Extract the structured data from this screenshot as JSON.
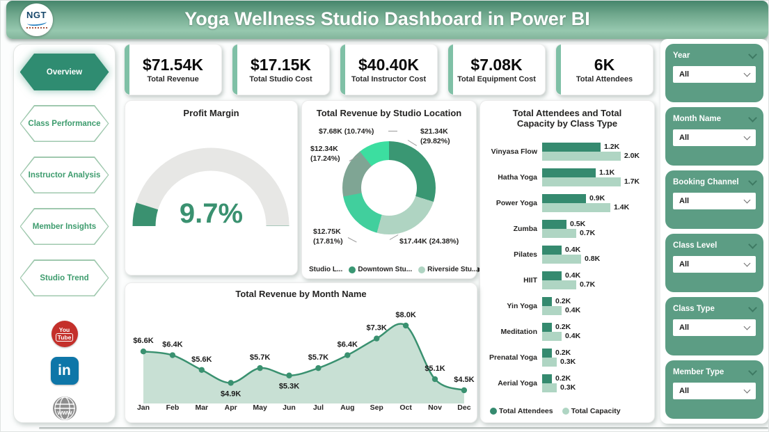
{
  "header": {
    "logo_text": "NGT",
    "title": "Yoga Wellness Studio Dashboard in Power BI"
  },
  "sidebar": {
    "items": [
      {
        "label": "Overview",
        "active": true
      },
      {
        "label": "Class Performance",
        "active": false
      },
      {
        "label": "Instructor Analysis",
        "active": false
      },
      {
        "label": "Member Insights",
        "active": false
      },
      {
        "label": "Studio Trend",
        "active": false
      }
    ],
    "social": {
      "youtube_lines": [
        "You",
        "Tube"
      ],
      "linkedin_text": "in",
      "web_text": "www"
    }
  },
  "kpis": [
    {
      "value": "$71.54K",
      "label": "Total Revenue"
    },
    {
      "value": "$17.15K",
      "label": "Total Studio Cost"
    },
    {
      "value": "$40.40K",
      "label": "Total Instructor Cost"
    },
    {
      "value": "$7.08K",
      "label": "Total Equipment Cost"
    },
    {
      "value": "6K",
      "label": "Total Attendees"
    }
  ],
  "filters": [
    {
      "label": "Year",
      "value": "All"
    },
    {
      "label": "Month Name",
      "value": "All"
    },
    {
      "label": "Booking Channel",
      "value": "All"
    },
    {
      "label": "Class Level",
      "value": "All"
    },
    {
      "label": "Class Type",
      "value": "All"
    },
    {
      "label": "Member Type",
      "value": "All"
    }
  ],
  "theme": {
    "header_green": "#45856B",
    "active_nav_green": "#2F8C71",
    "nav_text_green": "#3E9C6E",
    "kpi_accent_green": "#7FC0A6",
    "filter_card_green": "#5C9D84",
    "youtube_red": "#C4302B",
    "linkedin_blue": "#0E76A8",
    "web_gray": "#8E8E8E"
  },
  "chart_data": [
    {
      "id": "gauge",
      "type": "gauge",
      "title": "Profit Margin",
      "value_label": "9.7%",
      "percent": 9.7,
      "range": [
        0,
        100
      ],
      "colors": {
        "track": "#E7E7E5",
        "fill": "#3A9170"
      }
    },
    {
      "id": "donut",
      "type": "pie",
      "title": "Total Revenue by Studio Location",
      "slices": [
        {
          "lines": [
            "$21.34K",
            "(29.82%)"
          ],
          "value_k": 21.34,
          "pct": 29.82,
          "color": "#3A9773"
        },
        {
          "lines": [
            "$17.44K (24.38%)"
          ],
          "value_k": 17.44,
          "pct": 24.38,
          "color": "#AFD4C2"
        },
        {
          "lines": [
            "$12.75K",
            "(17.81%)"
          ],
          "value_k": 12.75,
          "pct": 17.81,
          "color": "#41CF9D"
        },
        {
          "lines": [
            "$12.34K",
            "(17.24%)"
          ],
          "value_k": 12.34,
          "pct": 17.24,
          "color": "#7FA594"
        },
        {
          "lines": [
            "$7.68K (10.74%)"
          ],
          "value_k": 7.68,
          "pct": 10.74,
          "color": "#3CDEA0"
        }
      ],
      "legend": {
        "field": "Studio L...",
        "items": [
          {
            "label": "Downtown Stu...",
            "color": "#3A9773"
          },
          {
            "label": "Riverside Stu...",
            "color": "#AFD4C2"
          }
        ],
        "more_arrow": "▶"
      }
    },
    {
      "id": "bars",
      "type": "bar",
      "title": "Total Attendees and Total Capacity by Class Type",
      "categories": [
        "Vinyasa Flow",
        "Hatha Yoga",
        "Power Yoga",
        "Zumba",
        "Pilates",
        "HIIT",
        "Yin Yoga",
        "Meditation",
        "Prenatal Yoga",
        "Aerial Yoga"
      ],
      "xmax": 2.0,
      "series": [
        {
          "name": "Total Attendees",
          "color": "#358A6F",
          "values": [
            1.2,
            1.1,
            0.9,
            0.5,
            0.4,
            0.4,
            0.2,
            0.2,
            0.2,
            0.2
          ],
          "labels": [
            "1.2K",
            "1.1K",
            "0.9K",
            "0.5K",
            "0.4K",
            "0.4K",
            "0.2K",
            "0.2K",
            "0.2K",
            "0.2K"
          ]
        },
        {
          "name": "Total Capacity",
          "color": "#AFD5C3",
          "values": [
            2.0,
            1.7,
            1.4,
            0.7,
            0.8,
            0.7,
            0.4,
            0.4,
            0.3,
            0.3
          ],
          "labels": [
            "2.0K",
            "1.7K",
            "1.4K",
            "0.7K",
            "0.8K",
            "0.7K",
            "0.4K",
            "0.4K",
            "0.3K",
            "0.3K"
          ]
        }
      ]
    },
    {
      "id": "line",
      "type": "area",
      "title": "Total Revenue by Month Name",
      "x": [
        "Jan",
        "Feb",
        "Mar",
        "Apr",
        "May",
        "Jun",
        "Jul",
        "Aug",
        "Sep",
        "Oct",
        "Nov",
        "Dec"
      ],
      "values": [
        6.6,
        6.4,
        5.6,
        4.9,
        5.7,
        5.3,
        5.7,
        6.4,
        7.3,
        8.0,
        5.1,
        4.5
      ],
      "labels": [
        "$6.6K",
        "$6.4K",
        "$5.6K",
        "$4.9K",
        "$5.7K",
        "$5.3K",
        "$5.7K",
        "$6.4K",
        "$7.3K",
        "$8.0K",
        "$5.1K",
        "$4.5K"
      ],
      "label_below_indices": [
        3,
        5
      ],
      "colors": {
        "line": "#3A9170",
        "fill": "#C5DED2"
      }
    }
  ]
}
